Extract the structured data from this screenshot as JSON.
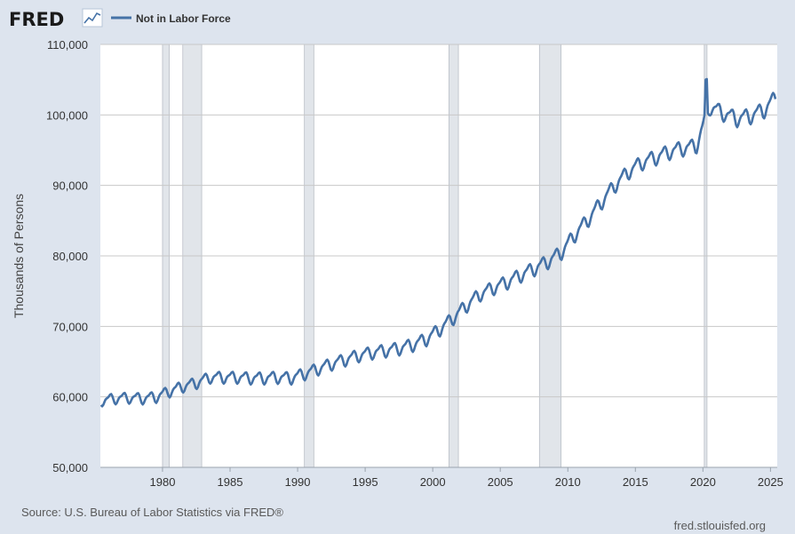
{
  "header": {
    "logo_text": "FRED",
    "logo_icon": "line-chart-icon"
  },
  "footer": {
    "source": "Source: U.S. Bureau of Labor Statistics via FRED®",
    "site": "fred.stlouisfed.org"
  },
  "colors": {
    "series": "#4572a7",
    "background": "#dde4ee",
    "plot": "#ffffff",
    "recession": "#e1e5ea",
    "grid": "#c8c8c8"
  },
  "chart_data": {
    "type": "line",
    "title": "",
    "xlabel": "",
    "ylabel": "Thousands of Persons",
    "legend": [
      "Not in Labor Force"
    ],
    "legend_position": "top-left",
    "grid": true,
    "xlim": [
      1975.4,
      2025.5
    ],
    "ylim": [
      50000,
      110000
    ],
    "x_ticks": [
      "1980",
      "1985",
      "1990",
      "1995",
      "2000",
      "2005",
      "2010",
      "2015",
      "2020",
      "2025"
    ],
    "y_ticks": [
      "50,000",
      "60,000",
      "70,000",
      "80,000",
      "90,000",
      "100,000",
      "110,000"
    ],
    "recessions": [
      [
        1980.0,
        1980.5
      ],
      [
        1981.5,
        1982.9
      ],
      [
        1990.5,
        1991.2
      ],
      [
        2001.2,
        2001.9
      ],
      [
        2007.9,
        2009.5
      ],
      [
        2020.1,
        2020.3
      ]
    ],
    "series": [
      {
        "name": "Not in Labor Force",
        "x": [
          1975.5,
          1976.5,
          1977.5,
          1978.5,
          1979.5,
          1980.5,
          1981.5,
          1982.5,
          1983.5,
          1984.5,
          1985.5,
          1986.5,
          1987.5,
          1988.5,
          1989.5,
          1990.5,
          1991.5,
          1992.5,
          1993.5,
          1994.5,
          1995.5,
          1996.5,
          1997.5,
          1998.5,
          1999.5,
          2000.5,
          2001.5,
          2002.5,
          2003.5,
          2004.5,
          2005.5,
          2006.5,
          2007.5,
          2008.5,
          2009.5,
          2010.5,
          2011.5,
          2012.5,
          2013.5,
          2014.5,
          2015.5,
          2016.5,
          2017.5,
          2018.5,
          2019.5,
          2020.5,
          2021.5,
          2022.5,
          2023.5,
          2024.5,
          2025.4
        ],
        "y": [
          59500,
          59800,
          59900,
          59800,
          60000,
          60800,
          61500,
          62000,
          62800,
          62800,
          62800,
          62700,
          62700,
          62800,
          62700,
          63300,
          64000,
          64700,
          65300,
          65900,
          66300,
          66600,
          66900,
          67400,
          68200,
          69600,
          71200,
          73000,
          74600,
          75500,
          76300,
          77300,
          78200,
          79200,
          80500,
          83000,
          85200,
          87700,
          90100,
          92000,
          93300,
          94000,
          94800,
          95300,
          95600,
          101200,
          100300,
          99500,
          99900,
          100700,
          102500
        ]
      }
    ]
  }
}
